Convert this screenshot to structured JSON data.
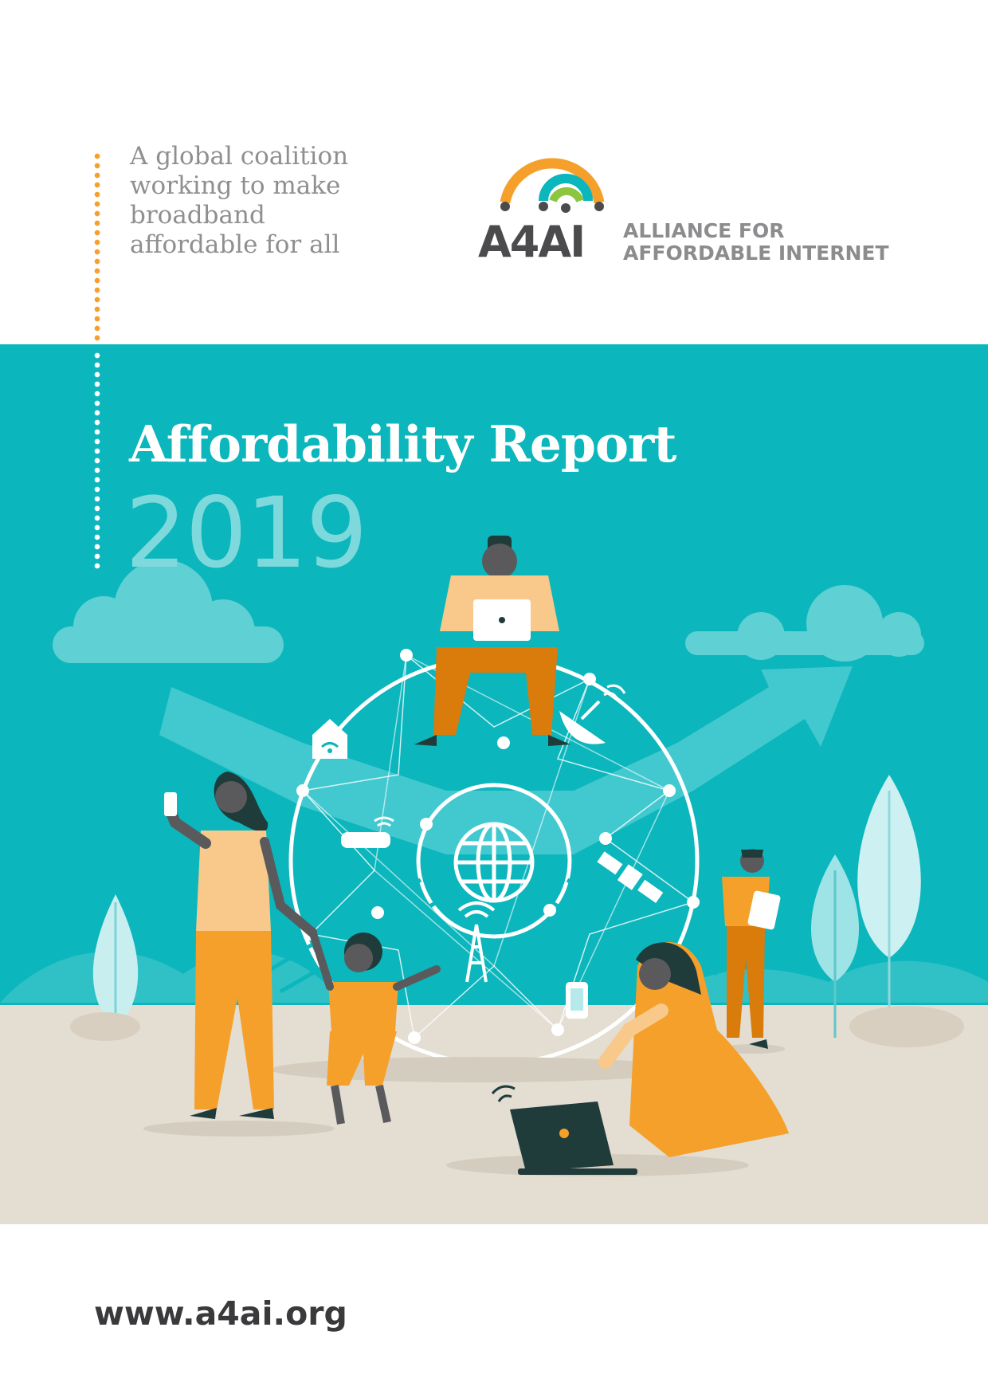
{
  "tagline": [
    "A global coalition",
    "working to make",
    "broadband",
    "affordable for all"
  ],
  "logo": {
    "short_name": "A4AI",
    "full_name_line1": "ALLIANCE FOR",
    "full_name_line2": "AFFORDABLE INTERNET"
  },
  "report": {
    "title": "Affordability Report",
    "year": "2019"
  },
  "website": "www.a4ai.org",
  "colors": {
    "teal": "#0bb6bc",
    "orange": "#f5a02a",
    "ground": "#e3ddd2",
    "text_grey": "#8f8f8f"
  },
  "illustration_icons": [
    "globe-icon",
    "home-wifi-icon",
    "router-icon",
    "satellite-dish-icon",
    "satellite-icon",
    "cell-tower-icon",
    "mobile-phone-icon"
  ]
}
